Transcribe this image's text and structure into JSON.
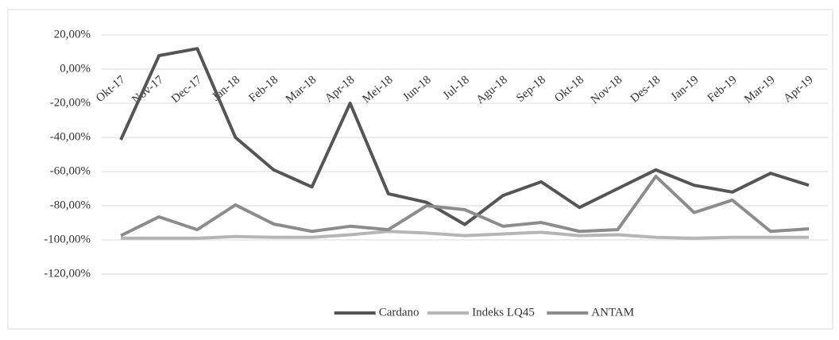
{
  "chart_data": {
    "type": "line",
    "categories": [
      "Okt-17",
      "Nov-17",
      "Dec-17",
      "Jan-18",
      "Feb-18",
      "Mar-18",
      "Apr-18",
      "Mei-18",
      "Jun-18",
      "Jul-18",
      "Agu-18",
      "Sep-18",
      "Okt-18",
      "Nov-18",
      "Des-18",
      "Jan-19",
      "Feb-19",
      "Mar-19",
      "Apr-19"
    ],
    "series": [
      {
        "name": "Cardano",
        "color": "#555555",
        "values": [
          -41.4,
          7.9,
          12,
          -40,
          -59,
          -69,
          -20,
          -73,
          -78,
          -91,
          -74,
          -66,
          -81,
          -70,
          -59,
          -68,
          -72,
          -61,
          -68
        ]
      },
      {
        "name": "Indeks LQ45",
        "color": "#b5b5b5",
        "values": [
          -99,
          -99,
          -99,
          -98,
          -98.5,
          -98.5,
          -97,
          -95,
          -96,
          -97.5,
          -96.5,
          -95.5,
          -97.5,
          -97,
          -98.5,
          -99,
          -98.5,
          -98.5,
          -98.5
        ]
      },
      {
        "name": "ANTAM",
        "color": "#8c8c8c",
        "values": [
          -97.5,
          -86.5,
          -94,
          -79.5,
          -90.7,
          -95,
          -92,
          -94,
          -80,
          -82.3,
          -92,
          -89.8,
          -95,
          -94,
          -62.8,
          -84,
          -76.7,
          -95,
          -93.5
        ]
      }
    ],
    "ylim": [
      -120,
      20
    ],
    "yticks": [
      {
        "value": 20,
        "label": "20,00%"
      },
      {
        "value": 0,
        "label": "0,00%"
      },
      {
        "value": -20,
        "label": "-20,00%"
      },
      {
        "value": -40,
        "label": "-40,00%"
      },
      {
        "value": -60,
        "label": "-60,00%"
      },
      {
        "value": -80,
        "label": "-80,00%"
      },
      {
        "value": -100,
        "label": "-100,00%"
      },
      {
        "value": -120,
        "label": "-120,00%"
      }
    ],
    "grid": true,
    "legend": "bottom"
  }
}
